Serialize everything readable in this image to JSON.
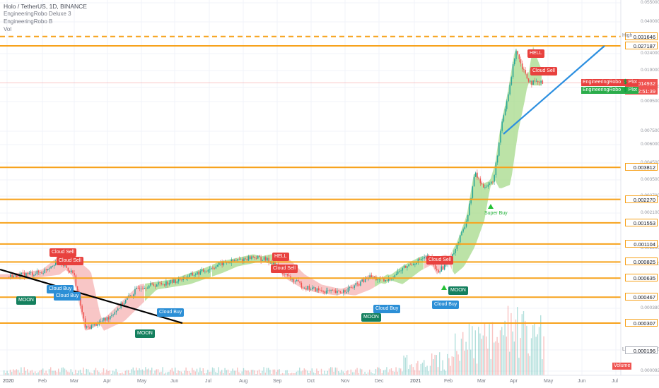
{
  "header": {
    "symbol_line": "Holo / TetherUS, 1D, BINANCE",
    "indicator1": "EngineeringRobo Deluxe 3",
    "indicator2": "EngineeringRobo B",
    "indicator3": "Vol"
  },
  "colors": {
    "level": "#f7a21b",
    "bull": "#26a69a",
    "bear": "#ef5350",
    "cloud_bull": "#a6d98a",
    "cloud_bear": "#f5b3b3",
    "trend_blue": "#2c8fe0",
    "trend_black": "#000000"
  },
  "chart_data": {
    "type": "candlestick",
    "scale": "log",
    "ylim": [
      9.2e-05,
      0.05
    ],
    "x_axis": [
      "2020",
      "Feb",
      "Mar",
      "Apr",
      "May",
      "Jun",
      "Jul",
      "Aug",
      "Sep",
      "Oct",
      "Nov",
      "Dec",
      "2021",
      "Feb",
      "Mar",
      "Apr",
      "May",
      "Jun",
      "Jul"
    ],
    "y_axis_ticks": [
      "0.055000",
      "0.040000",
      "0.024000",
      "0.019000",
      "0.012000",
      "0.009500",
      "0.007500",
      "0.006000",
      "0.004500",
      "0.003500",
      "0.002700",
      "0.002100",
      "0.001200",
      "0.000900",
      "0.000380",
      "0.000140",
      "0.000092"
    ],
    "price_path": [
      [
        "2020-01-01",
        0.00065
      ],
      [
        "2020-02-01",
        0.0007
      ],
      [
        "2020-02-15",
        0.00085
      ],
      [
        "2020-03-01",
        0.00068
      ],
      [
        "2020-03-12",
        0.00028
      ],
      [
        "2020-04-01",
        0.00033
      ],
      [
        "2020-05-01",
        0.00055
      ],
      [
        "2020-06-01",
        0.0006
      ],
      [
        "2020-07-01",
        0.00072
      ],
      [
        "2020-07-15",
        0.0008
      ],
      [
        "2020-08-01",
        0.00085
      ],
      [
        "2020-08-15",
        0.0009
      ],
      [
        "2020-09-01",
        0.00083
      ],
      [
        "2020-09-15",
        0.00065
      ],
      [
        "2020-10-01",
        0.00055
      ],
      [
        "2020-10-15",
        0.00052
      ],
      [
        "2020-11-01",
        0.0005
      ],
      [
        "2020-11-15",
        0.00055
      ],
      [
        "2020-12-01",
        0.00065
      ],
      [
        "2020-12-15",
        0.0006
      ],
      [
        "2021-01-01",
        0.00075
      ],
      [
        "2021-01-15",
        0.00085
      ],
      [
        "2021-01-25",
        0.0009
      ],
      [
        "2021-02-01",
        0.0007
      ],
      [
        "2021-02-10",
        0.0008
      ],
      [
        "2021-02-20",
        0.0011
      ],
      [
        "2021-03-01",
        0.0017
      ],
      [
        "2021-03-08",
        0.0035
      ],
      [
        "2021-03-15",
        0.0028
      ],
      [
        "2021-03-25",
        0.003
      ],
      [
        "2021-04-01",
        0.007
      ],
      [
        "2021-04-08",
        0.0125
      ],
      [
        "2021-04-15",
        0.026
      ],
      [
        "2021-04-20",
        0.02
      ],
      [
        "2021-04-26",
        0.016
      ],
      [
        "2021-04-30",
        0.01493
      ]
    ],
    "levels": [
      {
        "label": "0.031646",
        "dashed": true
      },
      {
        "label": "0.027187"
      },
      {
        "label": "0.003812"
      },
      {
        "label": "0.002270"
      },
      {
        "label": "0.001553"
      },
      {
        "label": "0.001104"
      },
      {
        "label": "0.000825"
      },
      {
        "label": "0.000635"
      },
      {
        "label": "0.000467"
      },
      {
        "label": "0.000307"
      }
    ],
    "high": {
      "label": "High",
      "value": "0.031646"
    },
    "low": {
      "label": "Low",
      "value": "0.000196"
    },
    "current_price": "0.014932",
    "countdown": "02:51:39",
    "plot_labels": [
      "EngineeringRobo 💲Plot",
      "EngineeringRobo 💲Plot"
    ],
    "volume_label": "Volume",
    "signals": [
      {
        "text": "Cloud Sell",
        "type": "red"
      },
      {
        "text": "Cloud Sell",
        "type": "red"
      },
      {
        "text": "Cloud Buy",
        "type": "blue"
      },
      {
        "text": "Cloud Buy",
        "type": "blue"
      },
      {
        "text": "MOON",
        "type": "teal"
      },
      {
        "text": "Cloud Buy",
        "type": "blue"
      },
      {
        "text": "MOON",
        "type": "teal"
      },
      {
        "text": "HELL",
        "type": "red"
      },
      {
        "text": "Cloud Sell",
        "type": "red"
      },
      {
        "text": "Cloud Buy",
        "type": "blue"
      },
      {
        "text": "MOON",
        "type": "teal"
      },
      {
        "text": "Cloud Sell",
        "type": "red"
      },
      {
        "text": "MOON",
        "type": "teal"
      },
      {
        "text": "Cloud Buy",
        "type": "blue"
      },
      {
        "text": "Super Buy",
        "type": "txt"
      },
      {
        "text": "HELL",
        "type": "red"
      },
      {
        "text": "Cloud Sell",
        "type": "red"
      }
    ]
  }
}
